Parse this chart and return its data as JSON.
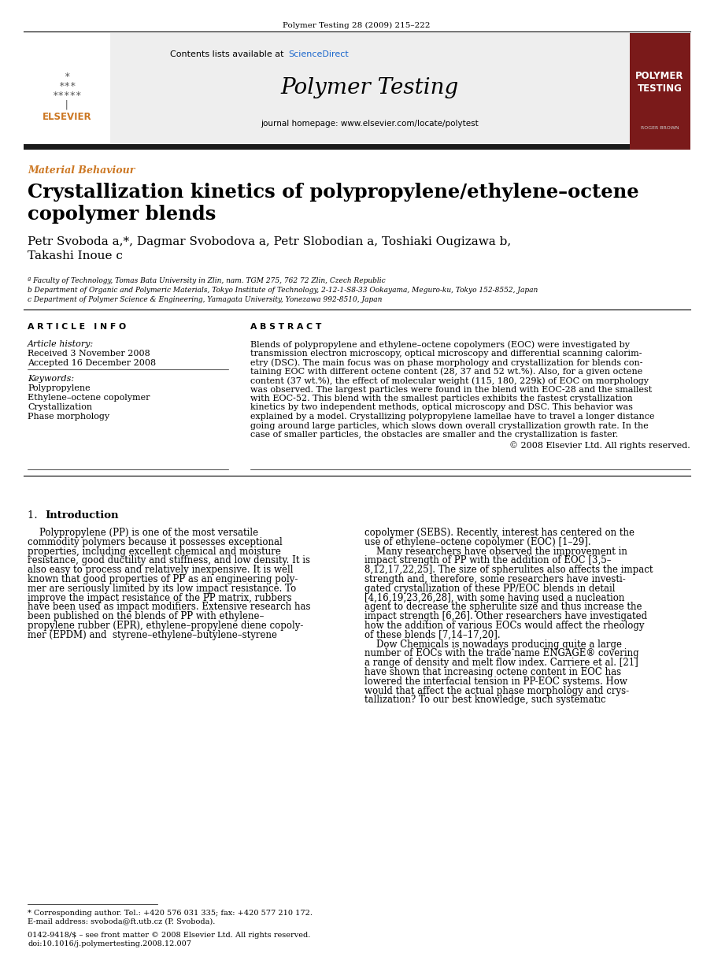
{
  "fig_width": 9.07,
  "fig_height": 12.38,
  "bg_color": "#ffffff",
  "journal_ref": "Polymer Testing 28 (2009) 215–222",
  "sciencedirect_color": "#1a66cc",
  "journal_title": "Polymer Testing",
  "journal_homepage": "journal homepage: www.elsevier.com/locate/polytest",
  "section_label": "Material Behaviour",
  "section_label_color": "#cc7722",
  "article_title_line1": "Crystallization kinetics of polypropylene/ethylene–octene",
  "article_title_line2": "copolymer blends",
  "authors_line1": "Petr Svoboda a,*, Dagmar Svobodova a, Petr Slobodian a, Toshiaki Ougizawa b,",
  "authors_line2": "Takashi Inoue c",
  "affil_a": "ª Faculty of Technology, Tomas Bata University in Zlin, nam. TGM 275, 762 72 Zlin, Czech Republic",
  "affil_b": "b Department of Organic and Polymeric Materials, Tokyo Institute of Technology, 2-12-1-S8-33 Ookayama, Meguro-ku, Tokyo 152-8552, Japan",
  "affil_c": "c Department of Polymer Science & Engineering, Yamagata University, Yonezawa 992-8510, Japan",
  "article_info_header": "A R T I C L E   I N F O",
  "abstract_header": "A B S T R A C T",
  "article_history_label": "Article history:",
  "received": "Received 3 November 2008",
  "accepted": "Accepted 16 December 2008",
  "keywords_label": "Keywords:",
  "keywords": [
    "Polypropylene",
    "Ethylene–octene copolymer",
    "Crystallization",
    "Phase morphology"
  ],
  "copyright": "© 2008 Elsevier Ltd. All rights reserved.",
  "intro_title": "Introduction",
  "footnote_star": "* Corresponding author. Tel.: +420 576 031 335; fax: +420 577 210 172.",
  "footnote_email": "E-mail address: svoboda@ft.utb.cz (P. Svoboda).",
  "issn_line": "0142-9418/$ – see front matter © 2008 Elsevier Ltd. All rights reserved.",
  "doi_line": "doi:10.1016/j.polymertesting.2008.12.007",
  "header_bar_color": "#1a1a1a",
  "polymer_testing_box_color": "#7a1a1a",
  "elsevier_color": "#cc7722",
  "center_bg_color": "#eeeeee",
  "abstract_lines": [
    "Blends of polypropylene and ethylene–octene copolymers (EOC) were investigated by",
    "transmission electron microscopy, optical microscopy and differential scanning calorim-",
    "etry (DSC). The main focus was on phase morphology and crystallization for blends con-",
    "taining EOC with different octene content (28, 37 and 52 wt.%). Also, for a given octene",
    "content (37 wt.%), the effect of molecular weight (115, 180, 229k) of EOC on morphology",
    "was observed. The largest particles were found in the blend with EOC-28 and the smallest",
    "with EOC-52. This blend with the smallest particles exhibits the fastest crystallization",
    "kinetics by two independent methods, optical microscopy and DSC. This behavior was",
    "explained by a model. Crystallizing polypropylene lamellae have to travel a longer distance",
    "going around large particles, which slows down overall crystallization growth rate. In the",
    "case of smaller particles, the obstacles are smaller and the crystallization is faster."
  ],
  "intro_left_lines": [
    "    Polypropylene (PP) is one of the most versatile",
    "commodity polymers because it possesses exceptional",
    "properties, including excellent chemical and moisture",
    "resistance, good ductility and stiffness, and low density. It is",
    "also easy to process and relatively inexpensive. It is well",
    "known that good properties of PP as an engineering poly-",
    "mer are seriously limited by its low impact resistance. To",
    "improve the impact resistance of the PP matrix, rubbers",
    "have been used as impact modifiers. Extensive research has",
    "been published on the blends of PP with ethylene–",
    "propylene rubber (EPR), ethylene–propylene diene copoly-",
    "mer (EPDM) and  styrene–ethylene–butylene–styrene"
  ],
  "intro_right_lines": [
    "copolymer (SEBS). Recently, interest has centered on the",
    "use of ethylene–octene copolymer (EOC) [1–29].",
    "    Many researchers have observed the improvement in",
    "impact strength of PP with the addition of EOC [3,5–",
    "8,12,17,22,25]. The size of spherulites also affects the impact",
    "strength and, therefore, some researchers have investi-",
    "gated crystallization of these PP/EOC blends in detail",
    "[4,16,19,23,26,28], with some having used a nucleation",
    "agent to decrease the spherulite size and thus increase the",
    "impact strength [6,26]. Other researchers have investigated",
    "how the addition of various EOCs would affect the rheology",
    "of these blends [7,14–17,20].",
    "    Dow Chemicals is nowadays producing quite a large",
    "number of EOCs with the trade name ENGAGE® covering",
    "a range of density and melt flow index. Carriere et al. [21]",
    "have shown that increasing octene content in EOC has",
    "lowered the interfacial tension in PP-EOC systems. How",
    "would that affect the actual phase morphology and crys-",
    "tallization? To our best knowledge, such systematic"
  ]
}
